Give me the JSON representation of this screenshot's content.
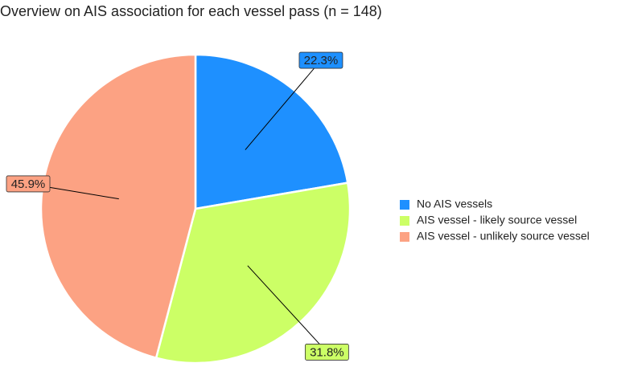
{
  "chart_data": {
    "type": "pie",
    "title": "Overview on AIS association for each vessel pass (n = 148)",
    "categories": [
      "No AIS vessels",
      "AIS vessel - likely source vessel",
      "AIS vessel - unlikely source vessel"
    ],
    "values": [
      22.3,
      31.8,
      45.9
    ],
    "value_labels": [
      "22.3%",
      "31.8%",
      "45.9%"
    ],
    "colors": [
      "#1e90ff",
      "#ccff66",
      "#fca283"
    ],
    "legend": "right"
  }
}
